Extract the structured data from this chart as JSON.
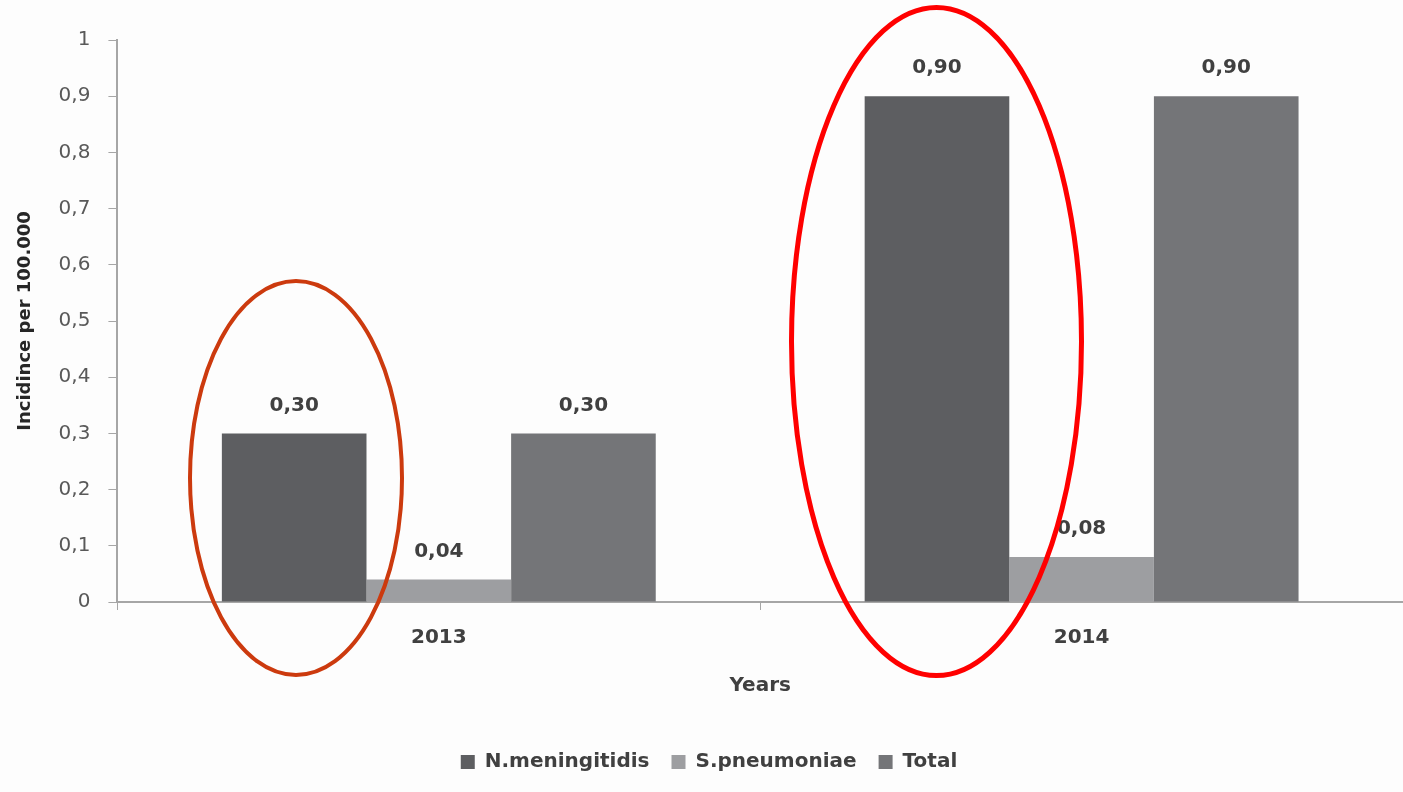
{
  "chart_data": {
    "type": "bar",
    "xlabel": "Years",
    "ylabel": "Incidince per 100.000",
    "categories": [
      "2013",
      "2014"
    ],
    "series": [
      {
        "name": "N.meningitidis",
        "color": "#5d5e61",
        "values": [
          0.3,
          0.9
        ],
        "value_labels": [
          "0,30",
          "0,90"
        ]
      },
      {
        "name": "S.pneumoniae",
        "color": "#9d9ea1",
        "values": [
          0.04,
          0.08
        ],
        "value_labels": [
          "0,04",
          "0,08"
        ]
      },
      {
        "name": "Total",
        "color": "#747578",
        "values": [
          0.3,
          0.9
        ],
        "value_labels": [
          "0,30",
          "0,90"
        ]
      }
    ],
    "ylim": [
      0,
      1
    ],
    "yticks": [
      0,
      {
        "value": 0.1,
        "label": "0,1"
      },
      {
        "value": 0.2,
        "label": "0,2"
      },
      {
        "value": 0.3,
        "label": "0,3"
      },
      {
        "value": 0.4,
        "label": "0,4"
      },
      {
        "value": 0.5,
        "label": "0,5"
      },
      {
        "value": 0.6,
        "label": "0,6"
      },
      {
        "value": 0.7,
        "label": "0,7"
      },
      {
        "value": 0.8,
        "label": "0,8"
      },
      {
        "value": 0.9,
        "label": "0,9"
      },
      1
    ],
    "grid": false,
    "legend": "bottom"
  }
}
